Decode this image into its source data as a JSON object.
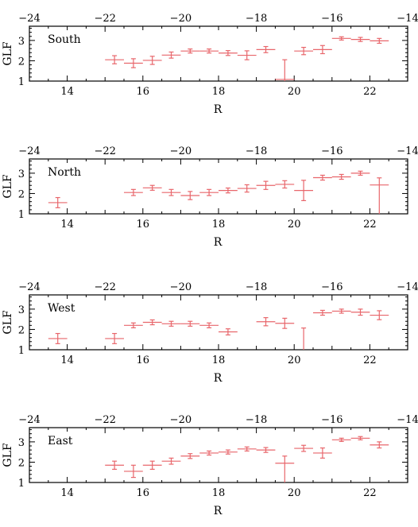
{
  "chart_data": [
    {
      "type": "scatter",
      "panel_label": "South",
      "xlabel": "R",
      "ylabel": "GLF",
      "xlim": [
        13,
        23
      ],
      "ylim": [
        1,
        3.7
      ],
      "top_axis_lim": [
        -24,
        -14
      ],
      "bottom_ticks": [
        "14",
        "16",
        "18",
        "20",
        "22"
      ],
      "top_ticks": [
        "−24",
        "−22",
        "−20",
        "−18",
        "−16",
        "−14"
      ],
      "y_ticks": [
        "1",
        "2",
        "3"
      ],
      "series": [
        {
          "color": "#e8666b",
          "points": [
            {
              "x": 15.25,
              "y": 2.05,
              "dx": 0.25,
              "dy": 0.2
            },
            {
              "x": 15.75,
              "y": 1.88,
              "dx": 0.25,
              "dy": 0.22
            },
            {
              "x": 16.25,
              "y": 2.02,
              "dx": 0.25,
              "dy": 0.2
            },
            {
              "x": 16.75,
              "y": 2.28,
              "dx": 0.25,
              "dy": 0.15
            },
            {
              "x": 17.25,
              "y": 2.48,
              "dx": 0.25,
              "dy": 0.1
            },
            {
              "x": 17.75,
              "y": 2.48,
              "dx": 0.25,
              "dy": 0.1
            },
            {
              "x": 18.25,
              "y": 2.38,
              "dx": 0.25,
              "dy": 0.12
            },
            {
              "x": 18.75,
              "y": 2.27,
              "dx": 0.25,
              "dy": 0.22
            },
            {
              "x": 19.25,
              "y": 2.55,
              "dx": 0.25,
              "dy": 0.15
            },
            {
              "x": 19.75,
              "y": 1.08,
              "dx": 0.25,
              "dy_up": 0.97,
              "dy_down": 0.08
            },
            {
              "x": 20.25,
              "y": 2.48,
              "dx": 0.25,
              "dy": 0.18
            },
            {
              "x": 20.75,
              "y": 2.55,
              "dx": 0.25,
              "dy": 0.2
            },
            {
              "x": 21.25,
              "y": 3.1,
              "dx": 0.25,
              "dy": 0.08
            },
            {
              "x": 21.75,
              "y": 3.05,
              "dx": 0.25,
              "dy": 0.1
            },
            {
              "x": 22.25,
              "y": 2.98,
              "dx": 0.25,
              "dy": 0.12
            }
          ]
        }
      ]
    },
    {
      "type": "scatter",
      "panel_label": "North",
      "xlabel": "R",
      "ylabel": "GLF",
      "xlim": [
        13,
        23
      ],
      "ylim": [
        1,
        3.7
      ],
      "top_axis_lim": [
        -24,
        -14
      ],
      "bottom_ticks": [
        "14",
        "16",
        "18",
        "20",
        "22"
      ],
      "top_ticks": [
        "−24",
        "−22",
        "−20",
        "−18",
        "−16",
        "−14"
      ],
      "y_ticks": [
        "1",
        "2",
        "3"
      ],
      "series": [
        {
          "color": "#e8666b",
          "points": [
            {
              "x": 13.75,
              "y": 1.55,
              "dx": 0.25,
              "dy": 0.25
            },
            {
              "x": 15.75,
              "y": 2.05,
              "dx": 0.25,
              "dy": 0.15
            },
            {
              "x": 16.25,
              "y": 2.28,
              "dx": 0.25,
              "dy": 0.12
            },
            {
              "x": 16.75,
              "y": 2.05,
              "dx": 0.25,
              "dy": 0.15
            },
            {
              "x": 17.25,
              "y": 1.9,
              "dx": 0.25,
              "dy": 0.2
            },
            {
              "x": 17.75,
              "y": 2.05,
              "dx": 0.25,
              "dy": 0.15
            },
            {
              "x": 18.25,
              "y": 2.15,
              "dx": 0.25,
              "dy": 0.12
            },
            {
              "x": 18.75,
              "y": 2.25,
              "dx": 0.25,
              "dy": 0.18
            },
            {
              "x": 19.25,
              "y": 2.4,
              "dx": 0.25,
              "dy": 0.2
            },
            {
              "x": 19.75,
              "y": 2.45,
              "dx": 0.25,
              "dy": 0.18
            },
            {
              "x": 20.25,
              "y": 2.15,
              "dx": 0.25,
              "dy": 0.5
            },
            {
              "x": 20.75,
              "y": 2.78,
              "dx": 0.25,
              "dy": 0.12
            },
            {
              "x": 21.25,
              "y": 2.82,
              "dx": 0.25,
              "dy": 0.12
            },
            {
              "x": 21.75,
              "y": 3.0,
              "dx": 0.25,
              "dy": 0.1
            },
            {
              "x": 22.25,
              "y": 2.42,
              "dx": 0.25,
              "dy_up": 0.35,
              "dy_down": 1.42
            }
          ]
        }
      ]
    },
    {
      "type": "scatter",
      "panel_label": "West",
      "xlabel": "R",
      "ylabel": "GLF",
      "xlim": [
        13,
        23
      ],
      "ylim": [
        1,
        3.7
      ],
      "top_axis_lim": [
        -24,
        -14
      ],
      "bottom_ticks": [
        "14",
        "16",
        "18",
        "20",
        "22"
      ],
      "top_ticks": [
        "−24",
        "−22",
        "−20",
        "−18",
        "−16",
        "−14"
      ],
      "y_ticks": [
        "1",
        "2",
        "3"
      ],
      "series": [
        {
          "color": "#e8666b",
          "points": [
            {
              "x": 13.75,
              "y": 1.55,
              "dx": 0.25,
              "dy": 0.25
            },
            {
              "x": 15.25,
              "y": 1.55,
              "dx": 0.25,
              "dy": 0.25
            },
            {
              "x": 15.75,
              "y": 2.2,
              "dx": 0.25,
              "dy": 0.12
            },
            {
              "x": 16.25,
              "y": 2.35,
              "dx": 0.25,
              "dy": 0.12
            },
            {
              "x": 16.75,
              "y": 2.28,
              "dx": 0.25,
              "dy": 0.12
            },
            {
              "x": 17.25,
              "y": 2.28,
              "dx": 0.25,
              "dy": 0.12
            },
            {
              "x": 17.75,
              "y": 2.2,
              "dx": 0.25,
              "dy": 0.12
            },
            {
              "x": 18.25,
              "y": 1.88,
              "dx": 0.25,
              "dy": 0.15
            },
            {
              "x": 19.25,
              "y": 2.38,
              "dx": 0.25,
              "dy": 0.2
            },
            {
              "x": 19.75,
              "y": 2.3,
              "dx": 0.25,
              "dy": 0.25
            },
            {
              "x": 20.25,
              "y": 1.02,
              "dx": 0.0,
              "dy_up": 1.05,
              "dy_down": 0.02
            },
            {
              "x": 20.75,
              "y": 2.82,
              "dx": 0.25,
              "dy": 0.12
            },
            {
              "x": 21.25,
              "y": 2.9,
              "dx": 0.25,
              "dy": 0.1
            },
            {
              "x": 21.75,
              "y": 2.85,
              "dx": 0.25,
              "dy": 0.15
            },
            {
              "x": 22.25,
              "y": 2.7,
              "dx": 0.25,
              "dy": 0.22
            }
          ]
        }
      ]
    },
    {
      "type": "scatter",
      "panel_label": "East",
      "xlabel": "R",
      "ylabel": "GLF",
      "xlim": [
        13,
        23
      ],
      "ylim": [
        1,
        3.7
      ],
      "top_axis_lim": [
        -24,
        -14
      ],
      "bottom_ticks": [
        "14",
        "16",
        "18",
        "20",
        "22"
      ],
      "top_ticks": [
        "−24",
        "−22",
        "−20",
        "−18",
        "−16",
        "−14"
      ],
      "y_ticks": [
        "1",
        "2",
        "3"
      ],
      "series": [
        {
          "color": "#e8666b",
          "points": [
            {
              "x": 15.25,
              "y": 1.85,
              "dx": 0.25,
              "dy": 0.2
            },
            {
              "x": 15.75,
              "y": 1.55,
              "dx": 0.25,
              "dy": 0.3
            },
            {
              "x": 16.25,
              "y": 1.85,
              "dx": 0.25,
              "dy": 0.2
            },
            {
              "x": 16.75,
              "y": 2.05,
              "dx": 0.25,
              "dy": 0.15
            },
            {
              "x": 17.25,
              "y": 2.3,
              "dx": 0.25,
              "dy": 0.12
            },
            {
              "x": 17.75,
              "y": 2.45,
              "dx": 0.25,
              "dy": 0.1
            },
            {
              "x": 18.25,
              "y": 2.5,
              "dx": 0.25,
              "dy": 0.1
            },
            {
              "x": 18.75,
              "y": 2.65,
              "dx": 0.25,
              "dy": 0.1
            },
            {
              "x": 19.25,
              "y": 2.6,
              "dx": 0.25,
              "dy": 0.12
            },
            {
              "x": 19.75,
              "y": 1.95,
              "dx": 0.25,
              "dy_up": 0.35,
              "dy_down": 0.95
            },
            {
              "x": 20.25,
              "y": 2.68,
              "dx": 0.25,
              "dy": 0.15
            },
            {
              "x": 20.75,
              "y": 2.45,
              "dx": 0.25,
              "dy": 0.25
            },
            {
              "x": 21.25,
              "y": 3.1,
              "dx": 0.25,
              "dy": 0.08
            },
            {
              "x": 21.75,
              "y": 3.18,
              "dx": 0.25,
              "dy": 0.08
            },
            {
              "x": 22.25,
              "y": 2.85,
              "dx": 0.25,
              "dy": 0.15
            }
          ]
        }
      ]
    }
  ]
}
